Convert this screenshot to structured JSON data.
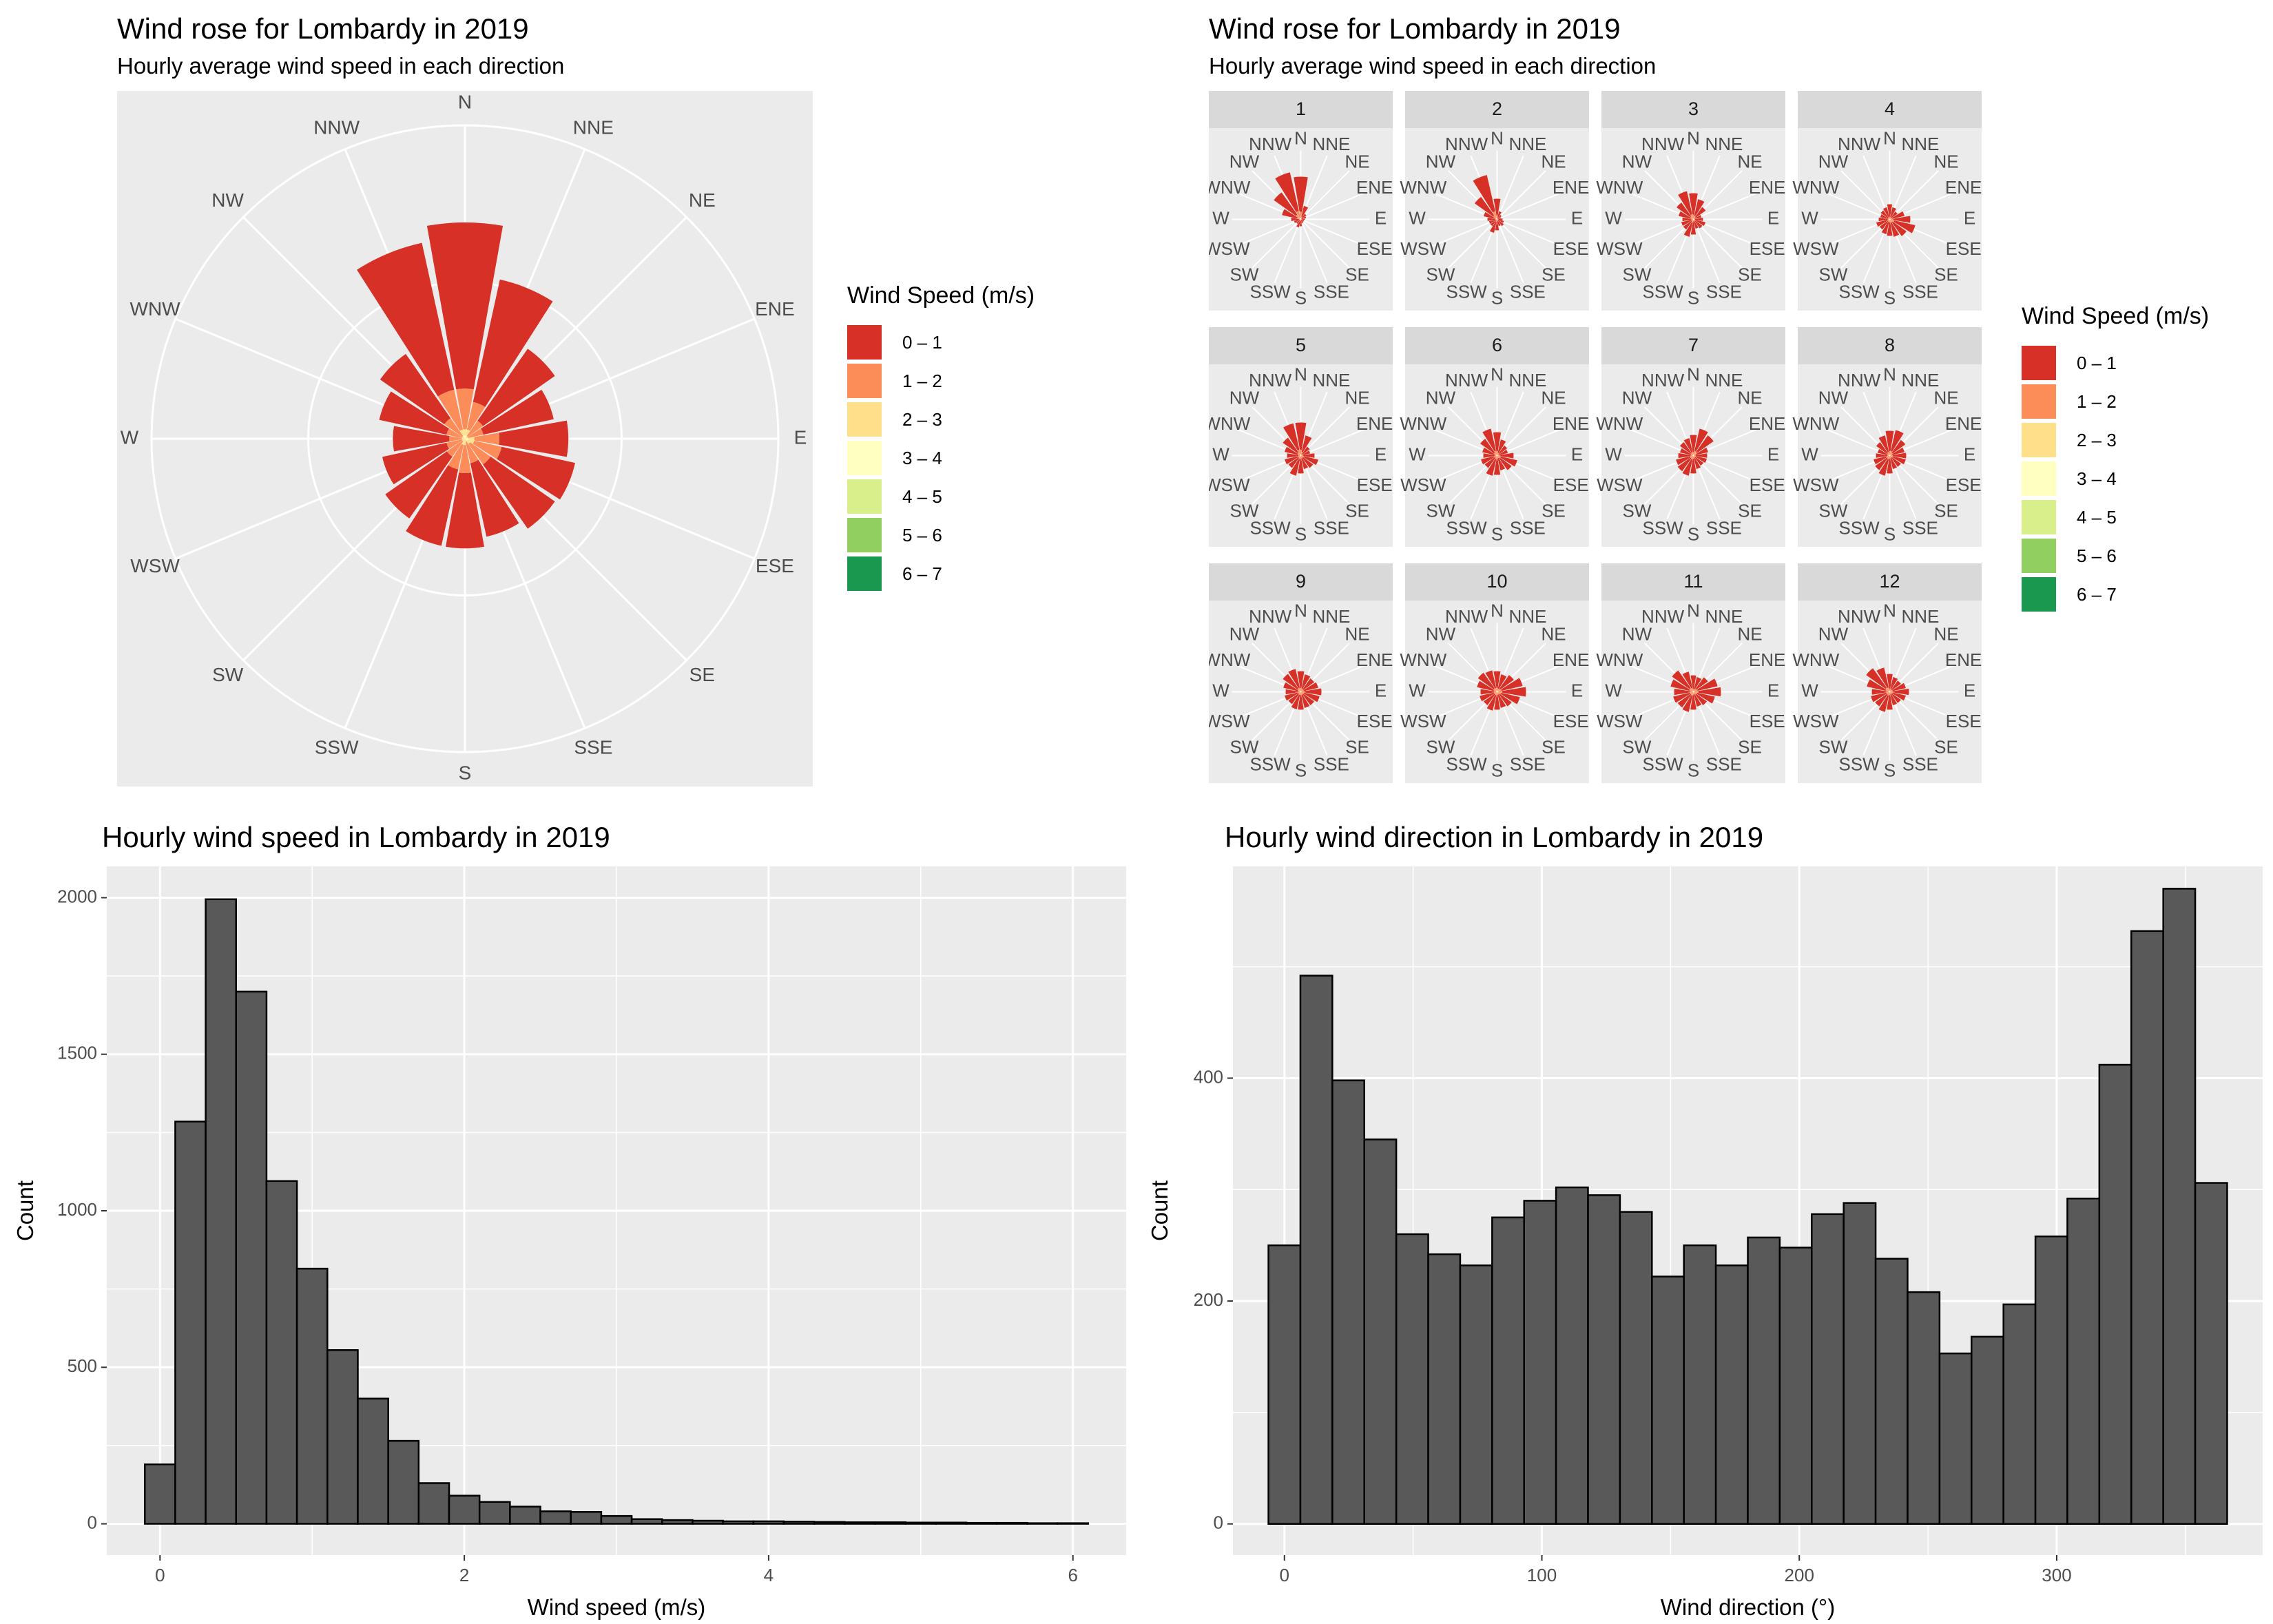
{
  "chart_data": [
    {
      "type": "polar-stacked-bar",
      "id": "rose",
      "title": "Wind rose for Lombardy in 2019",
      "subtitle": "Hourly average wind speed in each direction",
      "directions": [
        "N",
        "NNE",
        "NE",
        "ENE",
        "E",
        "ESE",
        "SE",
        "SSE",
        "S",
        "SSW",
        "SW",
        "WSW",
        "W",
        "WNW",
        "NW",
        "NNW"
      ],
      "legend": {
        "title": "Wind Speed (m/s)",
        "bins": [
          "0 – 1",
          "1 – 2",
          "2 – 3",
          "3 – 4",
          "4 – 5",
          "5 – 6",
          "6 – 7"
        ],
        "colors": [
          "#D73027",
          "#FC8D59",
          "#FEE08B",
          "#FFFFBF",
          "#D9EF8B",
          "#91CF60",
          "#1A9850"
        ]
      },
      "r_max": 1.0,
      "segments_by_bin": [
        [
          0.53,
          0.4,
          0.28,
          0.23,
          0.22,
          0.24,
          0.25,
          0.24,
          0.24,
          0.25,
          0.24,
          0.21,
          0.18,
          0.22,
          0.25,
          0.48
        ],
        [
          0.13,
          0.09,
          0.06,
          0.05,
          0.08,
          0.09,
          0.08,
          0.07,
          0.09,
          0.08,
          0.06,
          0.05,
          0.04,
          0.05,
          0.07,
          0.13
        ],
        [
          0.02,
          0.02,
          0.01,
          0.01,
          0.02,
          0.02,
          0.02,
          0.01,
          0.02,
          0.02,
          0.01,
          0.01,
          0.01,
          0.01,
          0.01,
          0.02
        ],
        [
          0.01,
          0.01,
          0.0,
          0.0,
          0.01,
          0.01,
          0.0,
          0.0,
          0.0,
          0.0,
          0.0,
          0.0,
          0.0,
          0.0,
          0.0,
          0.01
        ],
        [
          0,
          0,
          0,
          0,
          0,
          0,
          0,
          0,
          0,
          0,
          0,
          0,
          0,
          0,
          0,
          0
        ],
        [
          0,
          0,
          0,
          0,
          0,
          0,
          0,
          0,
          0,
          0,
          0,
          0,
          0,
          0,
          0,
          0
        ],
        [
          0,
          0,
          0,
          0,
          0,
          0,
          0,
          0,
          0,
          0,
          0,
          0,
          0,
          0,
          0,
          0
        ]
      ]
    },
    {
      "type": "polar-stacked-bar-facets",
      "id": "facets",
      "title": "Wind rose for Lombardy in 2019",
      "subtitle": "Hourly average wind speed in each direction",
      "legend_title": "Wind Speed (m/s)",
      "facets": [
        {
          "label": "1",
          "r": [
            0.62,
            0.2,
            0.1,
            0.08,
            0.06,
            0.05,
            0.05,
            0.06,
            0.1,
            0.12,
            0.08,
            0.1,
            0.14,
            0.28,
            0.48,
            0.7
          ]
        },
        {
          "label": "2",
          "r": [
            0.3,
            0.12,
            0.08,
            0.06,
            0.08,
            0.1,
            0.12,
            0.1,
            0.16,
            0.2,
            0.12,
            0.12,
            0.14,
            0.2,
            0.4,
            0.66
          ]
        },
        {
          "label": "3",
          "r": [
            0.38,
            0.3,
            0.22,
            0.12,
            0.14,
            0.18,
            0.16,
            0.14,
            0.22,
            0.26,
            0.18,
            0.18,
            0.16,
            0.22,
            0.3,
            0.42
          ]
        },
        {
          "label": "4",
          "r": [
            0.22,
            0.18,
            0.14,
            0.22,
            0.3,
            0.38,
            0.3,
            0.26,
            0.24,
            0.22,
            0.18,
            0.2,
            0.16,
            0.14,
            0.16,
            0.18
          ]
        },
        {
          "label": "5",
          "r": [
            0.48,
            0.3,
            0.16,
            0.14,
            0.2,
            0.26,
            0.22,
            0.2,
            0.26,
            0.3,
            0.22,
            0.24,
            0.2,
            0.24,
            0.32,
            0.48
          ]
        },
        {
          "label": "6",
          "r": [
            0.34,
            0.24,
            0.18,
            0.16,
            0.24,
            0.3,
            0.26,
            0.22,
            0.28,
            0.3,
            0.22,
            0.24,
            0.2,
            0.22,
            0.3,
            0.4
          ]
        },
        {
          "label": "7",
          "r": [
            0.3,
            0.4,
            0.36,
            0.22,
            0.2,
            0.2,
            0.18,
            0.2,
            0.26,
            0.3,
            0.28,
            0.26,
            0.22,
            0.2,
            0.24,
            0.26
          ]
        },
        {
          "label": "8",
          "r": [
            0.36,
            0.38,
            0.28,
            0.22,
            0.24,
            0.24,
            0.2,
            0.2,
            0.26,
            0.3,
            0.26,
            0.24,
            0.2,
            0.18,
            0.24,
            0.3
          ]
        },
        {
          "label": "9",
          "r": [
            0.3,
            0.26,
            0.24,
            0.26,
            0.3,
            0.28,
            0.24,
            0.24,
            0.26,
            0.26,
            0.22,
            0.24,
            0.22,
            0.26,
            0.32,
            0.34
          ]
        },
        {
          "label": "10",
          "r": [
            0.3,
            0.26,
            0.3,
            0.38,
            0.42,
            0.34,
            0.26,
            0.24,
            0.26,
            0.28,
            0.24,
            0.26,
            0.24,
            0.3,
            0.34,
            0.32
          ]
        },
        {
          "label": "11",
          "r": [
            0.24,
            0.22,
            0.26,
            0.36,
            0.4,
            0.32,
            0.24,
            0.22,
            0.26,
            0.3,
            0.28,
            0.3,
            0.28,
            0.34,
            0.38,
            0.3
          ]
        },
        {
          "label": "12",
          "r": [
            0.26,
            0.22,
            0.2,
            0.24,
            0.28,
            0.24,
            0.2,
            0.2,
            0.26,
            0.3,
            0.26,
            0.28,
            0.26,
            0.34,
            0.42,
            0.36
          ]
        }
      ]
    },
    {
      "type": "histogram",
      "id": "speed",
      "title": "Hourly wind speed in Lombardy in 2019",
      "xlabel": "Wind speed (m/s)",
      "ylabel": "Count",
      "bin_width": 0.2,
      "bin_centers": [
        0,
        0.2,
        0.4,
        0.6,
        0.8,
        1.0,
        1.2,
        1.4,
        1.6,
        1.8,
        2.0,
        2.2,
        2.4,
        2.6,
        2.8,
        3.0,
        3.2,
        3.4,
        3.6,
        3.8,
        4.0,
        4.2,
        4.4,
        4.6,
        4.8,
        5.0,
        5.2,
        5.4,
        5.6,
        5.8,
        6.0
      ],
      "values": [
        190,
        1285,
        1995,
        1700,
        1095,
        815,
        555,
        400,
        265,
        130,
        90,
        70,
        55,
        40,
        38,
        25,
        15,
        12,
        10,
        8,
        8,
        7,
        6,
        5,
        5,
        4,
        4,
        3,
        3,
        2,
        2
      ],
      "xlim": [
        -0.35,
        6.35
      ],
      "ylim": [
        -100,
        2100
      ],
      "xticks": [
        0,
        2,
        4,
        6
      ],
      "xminor": [
        1,
        3,
        5
      ],
      "yticks": [
        0,
        500,
        1000,
        1500,
        2000
      ],
      "yminor": [
        250,
        750,
        1250,
        1750
      ]
    },
    {
      "type": "histogram",
      "id": "direction",
      "title": "Hourly wind direction in Lombardy in 2019",
      "xlabel": "Wind direction (°)",
      "ylabel": "Count",
      "bin_width": 12.41,
      "bin_centers": [
        0,
        12.41,
        24.83,
        37.24,
        49.66,
        62.07,
        74.48,
        86.9,
        99.31,
        111.72,
        124.14,
        136.55,
        148.97,
        161.38,
        173.79,
        186.21,
        198.62,
        211.03,
        223.45,
        235.86,
        248.28,
        260.69,
        273.1,
        285.52,
        297.93,
        310.34,
        322.76,
        335.17,
        347.59,
        360
      ],
      "values": [
        250,
        492,
        398,
        345,
        260,
        242,
        232,
        275,
        290,
        302,
        295,
        280,
        222,
        250,
        232,
        257,
        248,
        278,
        288,
        238,
        208,
        153,
        168,
        197,
        258,
        292,
        412,
        532,
        570,
        306
      ],
      "xlim": [
        -20,
        380
      ],
      "ylim": [
        -28,
        590
      ],
      "xticks": [
        0,
        100,
        200,
        300
      ],
      "xminor": [
        50,
        150,
        250,
        350
      ],
      "yticks": [
        0,
        200,
        400
      ],
      "yminor": [
        100,
        300,
        500
      ]
    }
  ]
}
